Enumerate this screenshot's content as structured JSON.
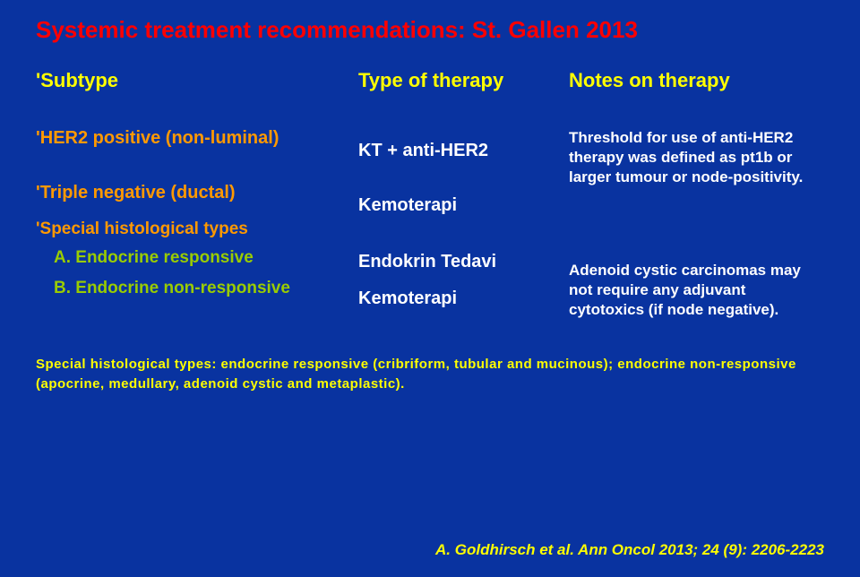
{
  "title": "Systemic treatment recommendations: St. Gallen 2013",
  "headers": {
    "subtype": "Subtype",
    "therapy": "Type of therapy",
    "notes": "Notes on therapy"
  },
  "subtypes": {
    "her2": "HER2 positive (non-luminal)",
    "triple": "Triple negative (ductal)",
    "special": "Special histological types",
    "endoA": "A. Endocrine responsive",
    "endoB": "B. Endocrine non-responsive"
  },
  "therapies": {
    "kt": "KT + anti-HER2",
    "kemo1": "Kemoterapi",
    "endokrin": "Endokrin Tedavi",
    "kemo2": "Kemoterapi"
  },
  "notes": {
    "threshold": "Threshold for use of anti-HER2 therapy was defined as pt1b or larger tumour or node-positivity.",
    "adenoid": "Adenoid cystic carcinomas may not require any adjuvant cytotoxics (if node negative)."
  },
  "footnote": "Special histological types: endocrine responsive (cribriform, tubular and mucinous); endocrine non-responsive (apocrine, medullary, adenoid cystic and metaplastic).",
  "citation": "A. Goldhirsch et al. Ann Oncol 2013; 24 (9): 2206-2223"
}
